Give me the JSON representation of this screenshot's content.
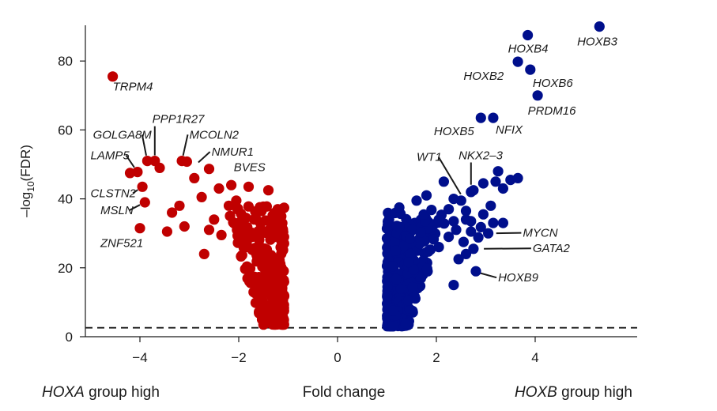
{
  "chart_data": {
    "type": "scatter",
    "title": "",
    "xlabel": "Fold change",
    "ylabel": "-log10(FDR)",
    "xlim": [
      -5,
      6
    ],
    "ylim": [
      0,
      90
    ],
    "xticks": [
      -4,
      -2,
      0,
      2,
      4
    ],
    "yticks": [
      0,
      20,
      40,
      60,
      80
    ],
    "threshold_y": 2.6,
    "bottom_labels": {
      "left_gene": "HOXA",
      "left_rest": " group high",
      "center": "Fold change",
      "right_gene": "HOXB",
      "right_rest": " group high"
    },
    "colors": {
      "hoxa_high": "#c00000",
      "hoxb_high": "#000f8c"
    },
    "series": [
      {
        "name": "HOXA group high",
        "color": "#c00000",
        "points": [
          [
            -4.55,
            75.5
          ],
          [
            -4.2,
            47.5
          ],
          [
            -4.05,
            47.8
          ],
          [
            -3.95,
            43.5
          ],
          [
            -3.85,
            51
          ],
          [
            -3.9,
            39
          ],
          [
            -3.7,
            51
          ],
          [
            -3.6,
            49
          ],
          [
            -4.0,
            31.5
          ],
          [
            -3.45,
            30.5
          ],
          [
            -3.2,
            38
          ],
          [
            -3.15,
            51
          ],
          [
            -3.05,
            50.8
          ],
          [
            -3.1,
            32
          ],
          [
            -3.35,
            36
          ],
          [
            -2.75,
            40.5
          ],
          [
            -2.6,
            48.7
          ],
          [
            -2.4,
            43
          ],
          [
            -2.15,
            44
          ],
          [
            -1.8,
            43.5
          ],
          [
            -1.4,
            42.5
          ],
          [
            -2.5,
            34
          ],
          [
            -2.2,
            38
          ],
          [
            -2.05,
            39.5
          ],
          [
            -2.7,
            24
          ],
          [
            -2.6,
            31
          ],
          [
            -2.35,
            29.5
          ],
          [
            -1.9,
            31
          ],
          [
            -2.9,
            46
          ]
        ],
        "cluster": {
          "x_range": [
            -2.3,
            -1.05
          ],
          "y_range": [
            3.5,
            38
          ],
          "count": 300,
          "seed": 7
        }
      },
      {
        "name": "HOXB group high",
        "color": "#000f8c",
        "points": [
          [
            5.3,
            90
          ],
          [
            3.85,
            87.5
          ],
          [
            3.65,
            79.8
          ],
          [
            3.9,
            77.5
          ],
          [
            4.05,
            70
          ],
          [
            2.9,
            63.5
          ],
          [
            3.15,
            63.5
          ],
          [
            2.15,
            45
          ],
          [
            2.95,
            44.5
          ],
          [
            2.75,
            42.5
          ],
          [
            2.7,
            42
          ],
          [
            3.25,
            48
          ],
          [
            3.2,
            45
          ],
          [
            3.35,
            43
          ],
          [
            3.5,
            45.5
          ],
          [
            3.65,
            46
          ],
          [
            3.1,
            38
          ],
          [
            2.5,
            39.5
          ],
          [
            2.95,
            35.5
          ],
          [
            3.15,
            33
          ],
          [
            3.35,
            33
          ],
          [
            3.05,
            30
          ],
          [
            2.7,
            30.5
          ],
          [
            2.75,
            25.5
          ],
          [
            2.8,
            19
          ],
          [
            2.35,
            15
          ],
          [
            1.6,
            39.5
          ],
          [
            1.8,
            41
          ],
          [
            1.25,
            37.5
          ],
          [
            2.35,
            40
          ],
          [
            2.25,
            37
          ],
          [
            2.6,
            36.5
          ],
          [
            2.85,
            28.8
          ],
          [
            2.55,
            27.5
          ],
          [
            2.45,
            22.5
          ],
          [
            2.6,
            34
          ],
          [
            2.4,
            31
          ],
          [
            2.25,
            29
          ],
          [
            2.05,
            34
          ],
          [
            1.9,
            36.8
          ],
          [
            2.7,
            33.5
          ],
          [
            2.9,
            31.8
          ],
          [
            2.35,
            33.5
          ],
          [
            2.05,
            26
          ],
          [
            2.6,
            24
          ]
        ],
        "cluster": {
          "x_range": [
            0.95,
            2.2
          ],
          "y_range": [
            3,
            36
          ],
          "count": 320,
          "seed": 23
        }
      }
    ],
    "annotations": [
      {
        "text": "TRPM4",
        "x": -4.55,
        "y": 75.5,
        "lx": -4.55,
        "ly": 71.5,
        "anchor": "start",
        "leader": false
      },
      {
        "text": "PPP1R27",
        "x": -3.7,
        "y": 51,
        "lx": -3.75,
        "ly": 62,
        "anchor": "start",
        "leader": true
      },
      {
        "text": "GOLGA8M",
        "x": -3.85,
        "y": 51,
        "lx": -4.95,
        "ly": 57.5,
        "anchor": "start",
        "leader": true
      },
      {
        "text": "MCOLN2",
        "x": -3.15,
        "y": 51,
        "lx": -3.0,
        "ly": 57.5,
        "anchor": "start",
        "leader": true
      },
      {
        "text": "LAMP5",
        "x": -4.05,
        "y": 47.8,
        "lx": -5.0,
        "ly": 51.5,
        "anchor": "start",
        "leader": true
      },
      {
        "text": "NMUR1",
        "x": -2.9,
        "y": 49.5,
        "lx": -2.55,
        "ly": 52.5,
        "anchor": "start",
        "leader": true
      },
      {
        "text": "BVES",
        "x": -2.6,
        "y": 48.7,
        "lx": -2.1,
        "ly": 48,
        "anchor": "start",
        "leader": false
      },
      {
        "text": "CLSTN2",
        "x": -3.95,
        "y": 43.5,
        "lx": -5.0,
        "ly": 40.5,
        "anchor": "start",
        "leader": true
      },
      {
        "text": "MSLN",
        "x": -3.9,
        "y": 39,
        "lx": -4.8,
        "ly": 35.5,
        "anchor": "start",
        "leader": true
      },
      {
        "text": "ZNF521",
        "x": -4.0,
        "y": 31.5,
        "lx": -4.8,
        "ly": 26,
        "anchor": "start",
        "leader": false
      },
      {
        "text": "HOXB3",
        "x": 5.3,
        "y": 90,
        "lx": 4.85,
        "ly": 84.5,
        "anchor": "start",
        "leader": false
      },
      {
        "text": "HOXB4",
        "x": 3.85,
        "y": 87.5,
        "lx": 3.45,
        "ly": 82.5,
        "anchor": "start",
        "leader": false
      },
      {
        "text": "HOXB2",
        "x": 3.65,
        "y": 79.8,
        "lx": 2.55,
        "ly": 74.5,
        "anchor": "start",
        "leader": false
      },
      {
        "text": "HOXB6",
        "x": 3.9,
        "y": 77.5,
        "lx": 3.95,
        "ly": 72.5,
        "anchor": "start",
        "leader": false
      },
      {
        "text": "PRDM16",
        "x": 4.05,
        "y": 70,
        "lx": 3.85,
        "ly": 64.5,
        "anchor": "start",
        "leader": false
      },
      {
        "text": "HOXB5",
        "x": 2.9,
        "y": 63.5,
        "lx": 1.95,
        "ly": 58.5,
        "anchor": "start",
        "leader": false
      },
      {
        "text": "NFIX",
        "x": 3.15,
        "y": 63.5,
        "lx": 3.2,
        "ly": 59,
        "anchor": "start",
        "leader": false
      },
      {
        "text": "NKX2–3",
        "x": 2.7,
        "y": 42.5,
        "lx": 2.45,
        "ly": 51.5,
        "anchor": "start",
        "leader": true
      },
      {
        "text": "WT1",
        "x": 2.55,
        "y": 40,
        "lx": 1.6,
        "ly": 51,
        "anchor": "start",
        "leader": true
      },
      {
        "text": "MYCN",
        "x": 3.1,
        "y": 30,
        "lx": 3.75,
        "ly": 29,
        "anchor": "start",
        "leader": true
      },
      {
        "text": "GATA2",
        "x": 2.85,
        "y": 25.5,
        "lx": 3.95,
        "ly": 24.5,
        "anchor": "start",
        "leader": true
      },
      {
        "text": "HOXB9",
        "x": 2.75,
        "y": 19,
        "lx": 3.25,
        "ly": 16,
        "anchor": "start",
        "leader": true
      }
    ]
  }
}
